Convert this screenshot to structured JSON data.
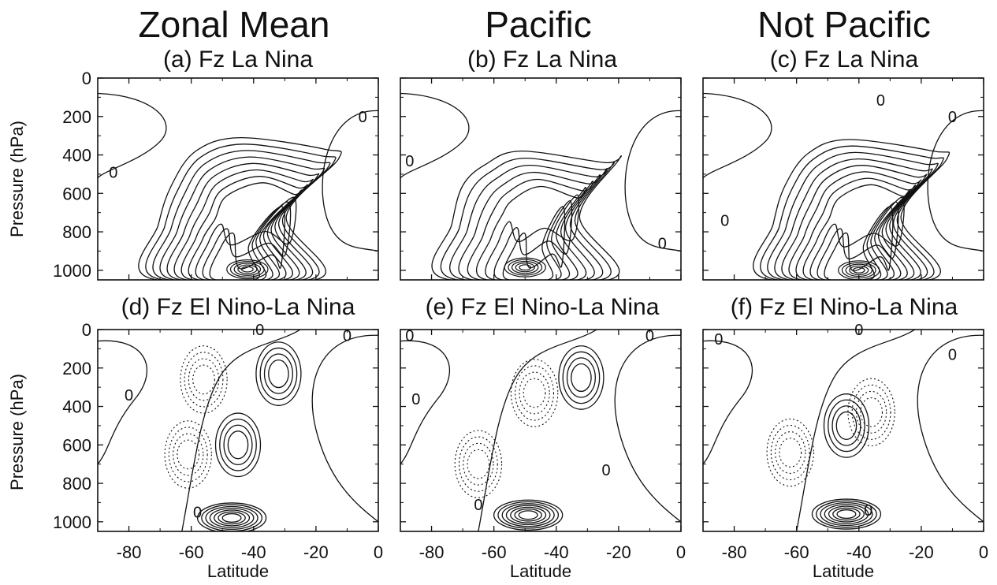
{
  "columns": [
    "Zonal Mean",
    "Pacific",
    "Not Pacific"
  ],
  "y_axis_label": "Pressure (hPa)",
  "x_axis_label": "Latitude",
  "chart_data": [
    {
      "type": "contour",
      "title": "(a) Fz La Nina",
      "column": "Zonal Mean",
      "row": 0,
      "xlabel": "",
      "ylabel": "Pressure (hPa)",
      "xlim": [
        -90,
        0
      ],
      "ylim": [
        1050,
        0
      ],
      "y_inverted": true,
      "xticks": [
        -80,
        -60,
        -40,
        -20,
        0
      ],
      "yticks": [
        0,
        200,
        400,
        600,
        800,
        1000
      ],
      "line_style": "solid (positive), dashed (negative)",
      "annotations": [
        {
          "text": "0",
          "x": -5,
          "y": 200
        },
        {
          "text": "0",
          "x": -85,
          "y": 490
        }
      ],
      "field": {
        "kind": "plume",
        "center_lat": -47,
        "center_p": 980,
        "peak_lat": -42,
        "peak_p": 995,
        "upper_lat": -33,
        "upper_p": 310,
        "n_positive_contours": 11,
        "n_negative_contours": 0
      }
    },
    {
      "type": "contour",
      "title": "(b) Fz La Nina",
      "column": "Pacific",
      "row": 0,
      "xlabel": "",
      "ylabel": "",
      "xlim": [
        -90,
        0
      ],
      "ylim": [
        1050,
        0
      ],
      "y_inverted": true,
      "xticks": [
        -80,
        -60,
        -40,
        -20,
        0
      ],
      "yticks": [
        0,
        200,
        400,
        600,
        800,
        1000
      ],
      "annotations": [
        {
          "text": "0",
          "x": -87,
          "y": 430
        },
        {
          "text": "0",
          "x": -6,
          "y": 860
        }
      ],
      "field": {
        "kind": "plume",
        "center_lat": -50,
        "center_p": 975,
        "peak_lat": -50,
        "peak_p": 985,
        "upper_lat": -40,
        "upper_p": 380,
        "n_positive_contours": 9,
        "n_negative_contours": 0
      }
    },
    {
      "type": "contour",
      "title": "(c) Fz La Nina",
      "column": "Not Pacific",
      "row": 0,
      "xlabel": "",
      "ylabel": "",
      "xlim": [
        -90,
        0
      ],
      "ylim": [
        1050,
        0
      ],
      "y_inverted": true,
      "xticks": [
        -80,
        -60,
        -40,
        -20,
        0
      ],
      "yticks": [
        0,
        200,
        400,
        600,
        800,
        1000
      ],
      "annotations": [
        {
          "text": "0",
          "x": -33,
          "y": 115
        },
        {
          "text": "0",
          "x": -10,
          "y": 200
        },
        {
          "text": "0",
          "x": -83,
          "y": 740
        }
      ],
      "field": {
        "kind": "plume",
        "center_lat": -44,
        "center_p": 990,
        "peak_lat": -40,
        "peak_p": 1000,
        "upper_lat": -32,
        "upper_p": 320,
        "n_positive_contours": 11,
        "n_negative_contours": 0
      }
    },
    {
      "type": "contour",
      "title": "(d) Fz El Nino-La Nina",
      "column": "Zonal Mean",
      "row": 1,
      "xlabel": "Latitude",
      "ylabel": "Pressure (hPa)",
      "xlim": [
        -90,
        0
      ],
      "ylim": [
        1050,
        0
      ],
      "y_inverted": true,
      "xticks": [
        -80,
        -60,
        -40,
        -20,
        0
      ],
      "yticks": [
        0,
        200,
        400,
        600,
        800,
        1000
      ],
      "annotations": [
        {
          "text": "0",
          "x": -38,
          "y": 0
        },
        {
          "text": "0",
          "x": -10,
          "y": 30
        },
        {
          "text": "0",
          "x": -80,
          "y": 340
        },
        {
          "text": "0",
          "x": -58,
          "y": 950
        }
      ],
      "field": {
        "kind": "dipole",
        "pos_centers": [
          [
            -47,
            980
          ],
          [
            -45,
            600
          ],
          [
            -32,
            230
          ]
        ],
        "neg_centers": [
          [
            -61,
            650
          ],
          [
            -56,
            260
          ]
        ],
        "n_positive_contours": 9,
        "n_negative_contours": 5
      }
    },
    {
      "type": "contour",
      "title": "(e) Fz El Nino-La Nina",
      "column": "Pacific",
      "row": 1,
      "xlabel": "Latitude",
      "ylabel": "",
      "xlim": [
        -90,
        0
      ],
      "ylim": [
        1050,
        0
      ],
      "y_inverted": true,
      "xticks": [
        -80,
        -60,
        -40,
        -20,
        0
      ],
      "yticks": [
        0,
        200,
        400,
        600,
        800,
        1000
      ],
      "annotations": [
        {
          "text": "0",
          "x": -87,
          "y": 30
        },
        {
          "text": "0",
          "x": -10,
          "y": 30
        },
        {
          "text": "0",
          "x": -85,
          "y": 360
        },
        {
          "text": "0",
          "x": -65,
          "y": 910
        },
        {
          "text": "0",
          "x": -24,
          "y": 730
        }
      ],
      "field": {
        "kind": "dipole",
        "pos_centers": [
          [
            -49,
            965
          ],
          [
            -32,
            250
          ]
        ],
        "neg_centers": [
          [
            -47,
            330
          ],
          [
            -65,
            700
          ]
        ],
        "n_positive_contours": 9,
        "n_negative_contours": 7
      }
    },
    {
      "type": "contour",
      "title": "(f) Fz El Nino-La Nina",
      "column": "Not Pacific",
      "row": 1,
      "xlabel": "Latitude",
      "ylabel": "",
      "xlim": [
        -90,
        0
      ],
      "ylim": [
        1050,
        0
      ],
      "y_inverted": true,
      "xticks": [
        -80,
        -60,
        -40,
        -20,
        0
      ],
      "yticks": [
        0,
        200,
        400,
        600,
        800,
        1000
      ],
      "annotations": [
        {
          "text": "0",
          "x": -40,
          "y": 0
        },
        {
          "text": "0",
          "x": -85,
          "y": 50
        },
        {
          "text": "0",
          "x": -10,
          "y": 130
        },
        {
          "text": "0",
          "x": -37,
          "y": 940
        }
      ],
      "field": {
        "kind": "dipole",
        "pos_centers": [
          [
            -44,
            960
          ],
          [
            -44,
            500
          ]
        ],
        "neg_centers": [
          [
            -62,
            640
          ],
          [
            -36,
            430
          ]
        ],
        "n_positive_contours": 10,
        "n_negative_contours": 5
      }
    }
  ]
}
